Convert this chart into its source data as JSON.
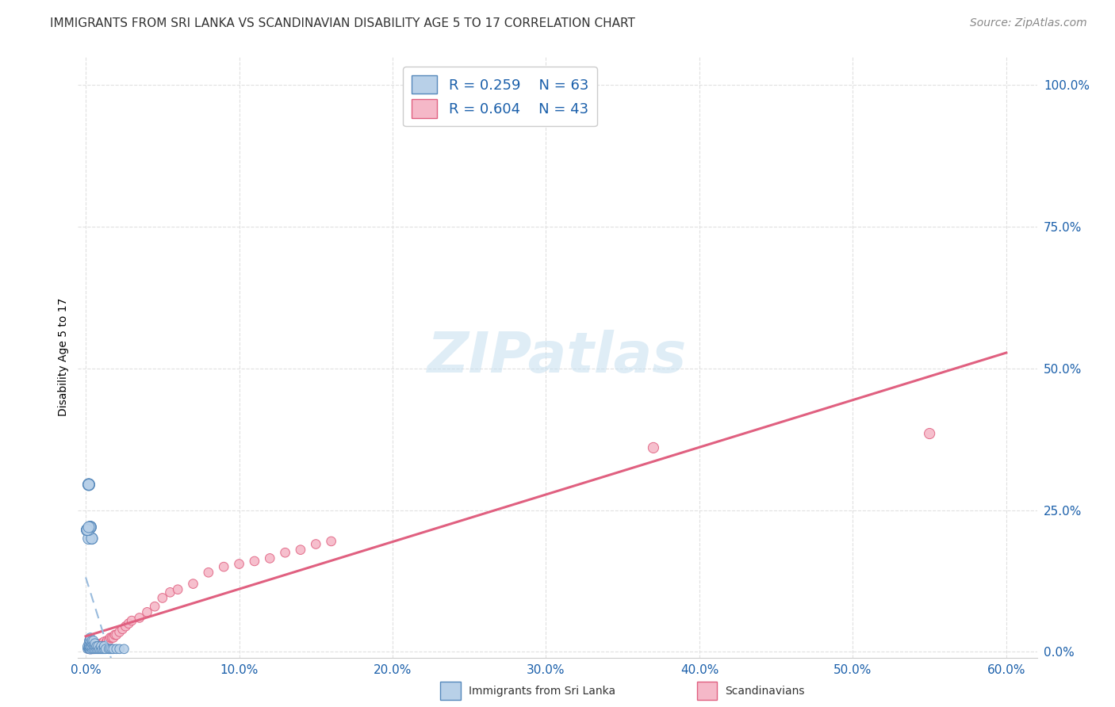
{
  "title": "IMMIGRANTS FROM SRI LANKA VS SCANDINAVIAN DISABILITY AGE 5 TO 17 CORRELATION CHART",
  "source": "Source: ZipAtlas.com",
  "ylabel": "Disability Age 5 to 17",
  "x_tick_labels": [
    "0.0%",
    "10.0%",
    "20.0%",
    "30.0%",
    "40.0%",
    "50.0%",
    "60.0%"
  ],
  "x_tick_vals": [
    0.0,
    0.1,
    0.2,
    0.3,
    0.4,
    0.5,
    0.6
  ],
  "y_tick_labels": [
    "0.0%",
    "25.0%",
    "50.0%",
    "75.0%",
    "100.0%"
  ],
  "y_tick_vals": [
    0.0,
    0.25,
    0.5,
    0.75,
    1.0
  ],
  "xlim": [
    -0.005,
    0.62
  ],
  "ylim": [
    -0.01,
    1.05
  ],
  "legend_r1": "R = 0.259",
  "legend_n1": "N = 63",
  "legend_r2": "R = 0.604",
  "legend_n2": "N = 43",
  "watermark": "ZIPatlas",
  "sri_lanka_color": "#b8d0e8",
  "scandinavian_color": "#f5b8c8",
  "sri_lanka_edge": "#5588bb",
  "scandinavian_edge": "#e06080",
  "trendline1_color": "#99bbdd",
  "trendline2_color": "#e06080",
  "grid_color": "#e0e0e0",
  "sri_lanka_x": [
    0.001,
    0.001,
    0.001,
    0.002,
    0.002,
    0.002,
    0.002,
    0.002,
    0.003,
    0.003,
    0.003,
    0.003,
    0.003,
    0.003,
    0.004,
    0.004,
    0.004,
    0.004,
    0.005,
    0.005,
    0.005,
    0.005,
    0.006,
    0.006,
    0.006,
    0.007,
    0.007,
    0.008,
    0.008,
    0.009,
    0.01,
    0.01,
    0.011,
    0.012,
    0.012,
    0.013,
    0.015,
    0.016,
    0.017,
    0.018,
    0.02,
    0.022,
    0.025,
    0.001,
    0.002,
    0.003,
    0.004,
    0.001,
    0.002,
    0.003,
    0.002,
    0.001,
    0.003,
    0.002,
    0.001,
    0.002,
    0.003,
    0.004,
    0.002,
    0.003,
    0.002,
    0.001,
    0.002
  ],
  "sri_lanka_y": [
    0.005,
    0.008,
    0.01,
    0.005,
    0.008,
    0.01,
    0.015,
    0.02,
    0.005,
    0.008,
    0.01,
    0.015,
    0.02,
    0.025,
    0.005,
    0.01,
    0.015,
    0.02,
    0.005,
    0.01,
    0.015,
    0.02,
    0.005,
    0.01,
    0.015,
    0.005,
    0.01,
    0.005,
    0.01,
    0.005,
    0.005,
    0.01,
    0.005,
    0.005,
    0.01,
    0.005,
    0.005,
    0.005,
    0.005,
    0.005,
    0.005,
    0.005,
    0.005,
    0.215,
    0.295,
    0.22,
    0.2,
    0.215,
    0.295,
    0.22,
    0.2,
    0.215,
    0.22,
    0.295,
    0.215,
    0.295,
    0.22,
    0.2,
    0.215,
    0.22,
    0.295,
    0.215,
    0.22
  ],
  "sri_lanka_sizes": [
    60,
    60,
    60,
    60,
    70,
    60,
    70,
    60,
    80,
    70,
    80,
    70,
    80,
    70,
    70,
    80,
    70,
    70,
    70,
    70,
    70,
    70,
    70,
    70,
    70,
    70,
    70,
    70,
    70,
    70,
    70,
    70,
    70,
    70,
    70,
    70,
    70,
    70,
    70,
    70,
    70,
    70,
    70,
    120,
    120,
    120,
    110,
    110,
    110,
    110,
    110,
    100,
    100,
    100,
    100,
    100,
    100,
    100,
    100,
    100,
    100,
    100,
    100
  ],
  "scandinavian_x": [
    0.002,
    0.003,
    0.004,
    0.005,
    0.006,
    0.007,
    0.008,
    0.009,
    0.01,
    0.011,
    0.012,
    0.013,
    0.014,
    0.015,
    0.016,
    0.017,
    0.018,
    0.019,
    0.02,
    0.022,
    0.024,
    0.026,
    0.028,
    0.03,
    0.035,
    0.04,
    0.045,
    0.05,
    0.055,
    0.06,
    0.07,
    0.08,
    0.09,
    0.1,
    0.11,
    0.12,
    0.13,
    0.14,
    0.15,
    0.16,
    0.37,
    0.55,
    0.005
  ],
  "scandinavian_y": [
    0.005,
    0.005,
    0.005,
    0.008,
    0.01,
    0.012,
    0.01,
    0.012,
    0.015,
    0.015,
    0.018,
    0.015,
    0.02,
    0.02,
    0.025,
    0.025,
    0.025,
    0.03,
    0.03,
    0.035,
    0.04,
    0.045,
    0.05,
    0.055,
    0.06,
    0.07,
    0.08,
    0.095,
    0.105,
    0.11,
    0.12,
    0.14,
    0.15,
    0.155,
    0.16,
    0.165,
    0.175,
    0.18,
    0.19,
    0.195,
    0.36,
    0.385,
    0.005
  ],
  "scandinavian_sizes": [
    70,
    70,
    70,
    70,
    70,
    70,
    70,
    70,
    70,
    70,
    70,
    70,
    70,
    70,
    70,
    70,
    70,
    70,
    70,
    70,
    70,
    70,
    70,
    70,
    70,
    70,
    70,
    70,
    70,
    70,
    70,
    70,
    70,
    70,
    70,
    70,
    70,
    70,
    70,
    70,
    90,
    90,
    70
  ],
  "trendline1_slope": 1.65,
  "trendline1_intercept": -0.002,
  "trendline2_slope": 1.58,
  "trendline2_intercept": -0.005,
  "sri_lanka_trend_start": 0.0,
  "sri_lanka_trend_end": 0.18,
  "scandinavian_trend_start": 0.0,
  "scandinavian_trend_end": 0.6,
  "title_fontsize": 11,
  "axis_label_fontsize": 10,
  "tick_fontsize": 11,
  "legend_fontsize": 13,
  "watermark_fontsize": 52,
  "watermark_color": "#c5dff0",
  "watermark_alpha": 0.55,
  "source_fontsize": 10
}
